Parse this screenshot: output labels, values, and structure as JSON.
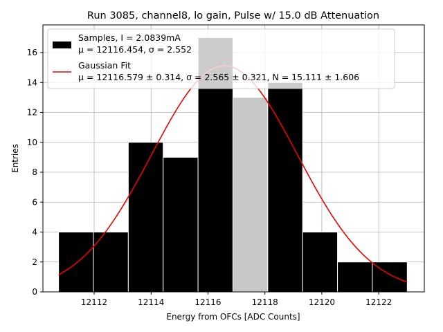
{
  "chart_data": {
    "type": "bar",
    "title": "Run 3085, channel8, lo gain, Pulse w/ 15.0 dB Attenuation",
    "xlabel": "Energy from OFCs [ADC Counts]",
    "ylabel": "Entries",
    "xlim": [
      12110.2,
      12123.6
    ],
    "ylim": [
      0,
      17.85
    ],
    "xticks": [
      12112,
      12114,
      12116,
      12118,
      12120,
      12122
    ],
    "yticks": [
      0,
      2,
      4,
      6,
      8,
      10,
      12,
      14,
      16
    ],
    "grid": true,
    "bin_edges": [
      12110.75,
      12111.975,
      12113.2,
      12114.425,
      12115.65,
      12116.875,
      12118.1,
      12119.325,
      12120.55,
      12121.775,
      12123.0
    ],
    "highlighted_bin_edges": [
      12116.0,
      12118.0
    ],
    "values": [
      4,
      4,
      10,
      9,
      17,
      13,
      14,
      4,
      2,
      2
    ],
    "series": [
      {
        "name": "Samples, I = 2.0839mA",
        "stats_label": "μ = 12116.454, σ = 2.552",
        "type": "histogram",
        "color": "#000000",
        "highlight_color": "#c8c8c8"
      },
      {
        "name": "Gaussian Fit",
        "stats_label": "μ = 12116.579 ± 0.314, σ = 2.565 ± 0.321, N = 15.111 ± 1.606",
        "type": "line",
        "color": "#ee0000",
        "mu": 12116.579,
        "sigma": 2.565,
        "amplitude": 15.111,
        "x_range": [
          12110.75,
          12123.0
        ]
      }
    ],
    "legend": "top-left"
  }
}
